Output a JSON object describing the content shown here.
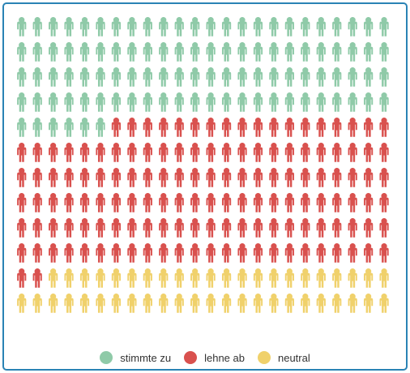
{
  "chart_data": {
    "type": "pictograph",
    "icon": "person-icon",
    "columns": 24,
    "rows": 12,
    "series": [
      {
        "name": "stimmte zu",
        "count": 102,
        "color": "#8fcaa8"
      },
      {
        "name": "lehne ab",
        "count": 140,
        "color": "#d9514e"
      },
      {
        "name": "neutral",
        "count": 46,
        "color": "#f0d16b"
      }
    ],
    "legend_position": "bottom-center"
  }
}
